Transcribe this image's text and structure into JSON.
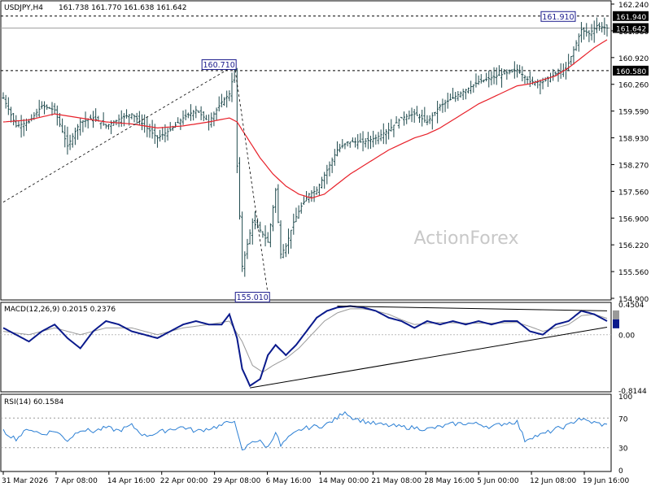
{
  "header": {
    "symbol": "USDJPY,H4",
    "ohlc": "161.738 161.770 161.638 161.642"
  },
  "watermark": "ActionForex",
  "colors": {
    "bar": "#1f4a4d",
    "ma": "#e8212a",
    "macd": "#0a1a8c",
    "signal": "#999999",
    "rsi": "#2b7fd4",
    "box": "#1a1a8c",
    "axis": "#000000",
    "watermark": "#c8c8c8"
  },
  "chart_data": [
    {
      "type": "candlestick",
      "panel": "price",
      "ylim": [
        154.9,
        162.24
      ],
      "y_ticks": [
        "162.240",
        "161.580",
        "160.920",
        "160.260",
        "159.590",
        "158.930",
        "158.270",
        "157.560",
        "156.900",
        "156.220",
        "155.560",
        "154.900"
      ],
      "x_ticks": [
        "31 Mar 2026",
        "7 Apr 08:00",
        "14 Apr 16:00",
        "22 Apr 00:00",
        "29 Apr 08:00",
        "6 May 16:00",
        "14 May 00:00",
        "21 May 08:00",
        "28 May 16:00",
        "5 Jun 00:00",
        "12 Jun 08:00",
        "19 Jun 16:00"
      ],
      "price_waypoints": [
        [
          0,
          159.9
        ],
        [
          5,
          159.2
        ],
        [
          10,
          159.3
        ],
        [
          15,
          159.7
        ],
        [
          20,
          159.6
        ],
        [
          25,
          158.7
        ],
        [
          30,
          159.3
        ],
        [
          35,
          159.4
        ],
        [
          40,
          159.2
        ],
        [
          46,
          159.4
        ],
        [
          50,
          159.5
        ],
        [
          55,
          159.2
        ],
        [
          60,
          158.9
        ],
        [
          65,
          159.1
        ],
        [
          70,
          159.4
        ],
        [
          75,
          159.6
        ],
        [
          80,
          159.3
        ],
        [
          85,
          159.8
        ],
        [
          88,
          160.0
        ],
        [
          90,
          160.6
        ],
        [
          91,
          158.2
        ],
        [
          93,
          155.7
        ],
        [
          97,
          156.8
        ],
        [
          100,
          156.6
        ],
        [
          103,
          156.3
        ],
        [
          106,
          157.6
        ],
        [
          108,
          156.0
        ],
        [
          110,
          156.2
        ],
        [
          113,
          156.8
        ],
        [
          116,
          157.2
        ],
        [
          119,
          157.5
        ],
        [
          122,
          157.6
        ],
        [
          126,
          158.1
        ],
        [
          130,
          158.6
        ],
        [
          134,
          158.8
        ],
        [
          140,
          158.8
        ],
        [
          145,
          158.9
        ],
        [
          150,
          159.1
        ],
        [
          155,
          159.4
        ],
        [
          160,
          159.5
        ],
        [
          165,
          159.3
        ],
        [
          170,
          159.7
        ],
        [
          175,
          159.9
        ],
        [
          180,
          160.1
        ],
        [
          185,
          160.3
        ],
        [
          190,
          160.4
        ],
        [
          195,
          160.5
        ],
        [
          200,
          160.6
        ],
        [
          205,
          160.3
        ],
        [
          210,
          160.3
        ],
        [
          215,
          160.5
        ],
        [
          219,
          160.6
        ],
        [
          222,
          161.1
        ],
        [
          225,
          161.6
        ],
        [
          228,
          161.5
        ],
        [
          231,
          161.7
        ],
        [
          235,
          161.64
        ]
      ],
      "ma_waypoints": [
        [
          0,
          159.3
        ],
        [
          10,
          159.35
        ],
        [
          20,
          159.5
        ],
        [
          30,
          159.4
        ],
        [
          40,
          159.3
        ],
        [
          50,
          159.25
        ],
        [
          60,
          159.15
        ],
        [
          70,
          159.2
        ],
        [
          80,
          159.3
        ],
        [
          88,
          159.4
        ],
        [
          91,
          159.3
        ],
        [
          95,
          158.9
        ],
        [
          100,
          158.4
        ],
        [
          105,
          158.0
        ],
        [
          110,
          157.7
        ],
        [
          115,
          157.5
        ],
        [
          120,
          157.4
        ],
        [
          125,
          157.5
        ],
        [
          130,
          157.75
        ],
        [
          135,
          158.0
        ],
        [
          140,
          158.2
        ],
        [
          145,
          158.4
        ],
        [
          150,
          158.6
        ],
        [
          155,
          158.75
        ],
        [
          160,
          158.9
        ],
        [
          165,
          159.0
        ],
        [
          170,
          159.15
        ],
        [
          175,
          159.35
        ],
        [
          180,
          159.55
        ],
        [
          185,
          159.75
        ],
        [
          190,
          159.9
        ],
        [
          195,
          160.05
        ],
        [
          200,
          160.2
        ],
        [
          205,
          160.25
        ],
        [
          210,
          160.35
        ],
        [
          215,
          160.45
        ],
        [
          220,
          160.65
        ],
        [
          225,
          160.9
        ],
        [
          230,
          161.15
        ],
        [
          235,
          161.35
        ]
      ],
      "current_price": "161.642",
      "h_lines": [
        "161.940",
        "160.580"
      ],
      "annotations": [
        {
          "label": "161.910",
          "index": 222,
          "value": 161.91
        },
        {
          "label": "160.710",
          "index": 90,
          "value": 160.71
        },
        {
          "label": "155.010",
          "index": 103,
          "value": 155.01
        }
      ]
    },
    {
      "type": "line",
      "panel": "macd",
      "title": "MACD(12,26,9) 0.2015 0.2376",
      "ylim": [
        -0.8144,
        0.4504
      ],
      "y_ticks": [
        "0.4504",
        "0.2376",
        "0.2015",
        "0.00",
        "-0.8144"
      ],
      "macd_waypoints": [
        [
          0,
          0.1
        ],
        [
          5,
          0.0
        ],
        [
          10,
          -0.1
        ],
        [
          15,
          0.05
        ],
        [
          20,
          0.15
        ],
        [
          25,
          -0.05
        ],
        [
          30,
          -0.2
        ],
        [
          35,
          0.05
        ],
        [
          40,
          0.2
        ],
        [
          45,
          0.15
        ],
        [
          50,
          0.05
        ],
        [
          55,
          0.0
        ],
        [
          60,
          -0.05
        ],
        [
          65,
          0.05
        ],
        [
          70,
          0.15
        ],
        [
          75,
          0.2
        ],
        [
          80,
          0.15
        ],
        [
          85,
          0.15
        ],
        [
          88,
          0.3
        ],
        [
          91,
          -0.05
        ],
        [
          93,
          -0.5
        ],
        [
          96,
          -0.75
        ],
        [
          100,
          -0.65
        ],
        [
          103,
          -0.3
        ],
        [
          106,
          -0.15
        ],
        [
          110,
          -0.3
        ],
        [
          114,
          -0.15
        ],
        [
          118,
          0.05
        ],
        [
          122,
          0.25
        ],
        [
          126,
          0.35
        ],
        [
          130,
          0.4
        ],
        [
          135,
          0.42
        ],
        [
          140,
          0.4
        ],
        [
          145,
          0.35
        ],
        [
          150,
          0.25
        ],
        [
          155,
          0.2
        ],
        [
          160,
          0.1
        ],
        [
          165,
          0.2
        ],
        [
          170,
          0.15
        ],
        [
          175,
          0.2
        ],
        [
          180,
          0.15
        ],
        [
          185,
          0.2
        ],
        [
          190,
          0.15
        ],
        [
          195,
          0.2
        ],
        [
          200,
          0.2
        ],
        [
          205,
          0.05
        ],
        [
          210,
          0.0
        ],
        [
          215,
          0.15
        ],
        [
          220,
          0.2
        ],
        [
          225,
          0.35
        ],
        [
          230,
          0.3
        ],
        [
          235,
          0.2
        ]
      ],
      "signal_waypoints": [
        [
          0,
          0.05
        ],
        [
          10,
          0.0
        ],
        [
          20,
          0.1
        ],
        [
          30,
          0.0
        ],
        [
          40,
          0.1
        ],
        [
          50,
          0.1
        ],
        [
          60,
          0.0
        ],
        [
          70,
          0.1
        ],
        [
          80,
          0.15
        ],
        [
          88,
          0.2
        ],
        [
          93,
          -0.1
        ],
        [
          97,
          -0.45
        ],
        [
          101,
          -0.55
        ],
        [
          105,
          -0.45
        ],
        [
          110,
          -0.35
        ],
        [
          115,
          -0.2
        ],
        [
          120,
          0.0
        ],
        [
          125,
          0.2
        ],
        [
          130,
          0.32
        ],
        [
          135,
          0.38
        ],
        [
          140,
          0.38
        ],
        [
          145,
          0.35
        ],
        [
          150,
          0.3
        ],
        [
          155,
          0.22
        ],
        [
          160,
          0.15
        ],
        [
          170,
          0.18
        ],
        [
          180,
          0.17
        ],
        [
          190,
          0.17
        ],
        [
          200,
          0.18
        ],
        [
          205,
          0.12
        ],
        [
          210,
          0.05
        ],
        [
          215,
          0.1
        ],
        [
          220,
          0.15
        ],
        [
          225,
          0.28
        ],
        [
          230,
          0.3
        ],
        [
          235,
          0.24
        ]
      ],
      "trendlines": [
        [
          [
            96,
            -0.78
          ],
          [
            235,
            0.11
          ]
        ],
        [
          [
            130,
            0.42
          ],
          [
            235,
            0.35
          ]
        ]
      ]
    },
    {
      "type": "line",
      "panel": "rsi",
      "title": "RSI(14) 60.1584",
      "ylim": [
        0,
        100
      ],
      "y_ticks": [
        "100",
        "70",
        "30",
        "0"
      ],
      "rsi_waypoints": [
        [
          0,
          52
        ],
        [
          5,
          42
        ],
        [
          10,
          56
        ],
        [
          15,
          48
        ],
        [
          20,
          53
        ],
        [
          25,
          40
        ],
        [
          30,
          55
        ],
        [
          35,
          52
        ],
        [
          40,
          57
        ],
        [
          45,
          53
        ],
        [
          50,
          60
        ],
        [
          55,
          46
        ],
        [
          60,
          50
        ],
        [
          65,
          55
        ],
        [
          70,
          58
        ],
        [
          75,
          52
        ],
        [
          80,
          56
        ],
        [
          85,
          60
        ],
        [
          90,
          68
        ],
        [
          91,
          50
        ],
        [
          93,
          25
        ],
        [
          95,
          32
        ],
        [
          97,
          40
        ],
        [
          100,
          38
        ],
        [
          103,
          30
        ],
        [
          106,
          52
        ],
        [
          108,
          32
        ],
        [
          110,
          40
        ],
        [
          113,
          48
        ],
        [
          116,
          55
        ],
        [
          120,
          58
        ],
        [
          125,
          60
        ],
        [
          130,
          70
        ],
        [
          133,
          80
        ],
        [
          135,
          72
        ],
        [
          140,
          66
        ],
        [
          145,
          62
        ],
        [
          150,
          60
        ],
        [
          155,
          58
        ],
        [
          160,
          57
        ],
        [
          165,
          55
        ],
        [
          170,
          58
        ],
        [
          175,
          62
        ],
        [
          180,
          63
        ],
        [
          185,
          62
        ],
        [
          190,
          58
        ],
        [
          195,
          63
        ],
        [
          200,
          65
        ],
        [
          203,
          40
        ],
        [
          205,
          44
        ],
        [
          210,
          48
        ],
        [
          215,
          55
        ],
        [
          220,
          60
        ],
        [
          224,
          70
        ],
        [
          227,
          66
        ],
        [
          231,
          63
        ],
        [
          235,
          60
        ]
      ]
    }
  ]
}
